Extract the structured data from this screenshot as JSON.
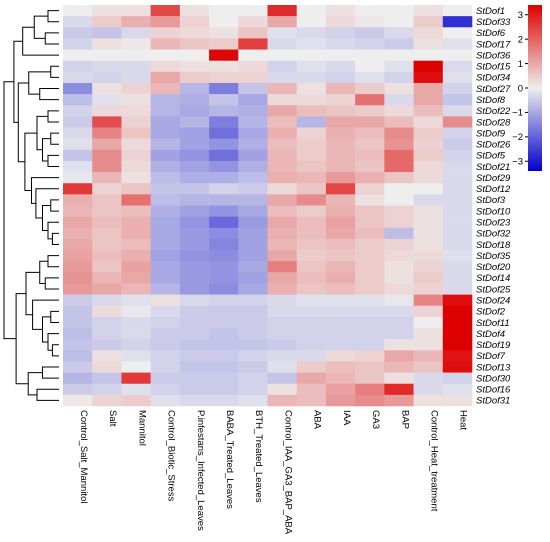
{
  "chart_data": {
    "type": "heatmap",
    "title": "",
    "xlabel": "",
    "ylabel": "",
    "columns": [
      "Control_Salt_Mannitol",
      "Salt",
      "Mannitol",
      "Control_Biotic_Stress",
      "P.infestans_Infected_Leaves",
      "BABA_Treated_Leaves",
      "BTH_Treated_Leaves",
      "Control_IAA_GA3_BAP_ABA",
      "ABA",
      "IAA",
      "GA3",
      "BAP",
      "Control_Heat_treatment",
      "Heat"
    ],
    "rows": [
      "StDof1",
      "StDof33",
      "StDof6",
      "StDof17",
      "StDof36",
      "StDof15",
      "StDof34",
      "StDof27",
      "StDof8",
      "StDof22",
      "StDof28",
      "StDof9",
      "StDof26",
      "StDof5",
      "StDof21",
      "StDof29",
      "StDof12",
      "StDof3",
      "StDof10",
      "StDof23",
      "StDof32",
      "StDof18",
      "StDof35",
      "StDof20",
      "StDof14",
      "StDof25",
      "StDof24",
      "StDof2",
      "StDof11",
      "StDof4",
      "StDof19",
      "StDof7",
      "StDof13",
      "StDof30",
      "StDof16",
      "StDof31"
    ],
    "values": [
      [
        0.0,
        0.2,
        0.2,
        2.4,
        0.2,
        0.0,
        0.0,
        2.8,
        0.0,
        0.2,
        0.0,
        0.0,
        0.2,
        0.0
      ],
      [
        -0.3,
        0.5,
        0.9,
        1.2,
        0.4,
        0.0,
        0.3,
        1.0,
        0.0,
        0.3,
        0.1,
        0.0,
        0.5,
        -2.7
      ],
      [
        -0.5,
        -0.6,
        -0.3,
        0.4,
        0.3,
        0.2,
        0.6,
        -0.2,
        -0.3,
        -0.4,
        -0.5,
        -0.3,
        0.3,
        0.0
      ],
      [
        -0.4,
        0.2,
        0.1,
        0.8,
        0.6,
        0.5,
        2.5,
        -0.3,
        -0.2,
        -0.3,
        -0.4,
        -0.5,
        0.2,
        -0.2
      ],
      [
        0.0,
        0.0,
        0.0,
        0.0,
        0.0,
        3.3,
        0.0,
        0.0,
        0.0,
        0.0,
        0.0,
        0.0,
        0.0,
        0.0
      ],
      [
        -0.4,
        -0.3,
        -0.3,
        0.3,
        0.2,
        0.2,
        0.3,
        -0.4,
        -0.2,
        -0.3,
        0.0,
        -0.2,
        3.4,
        -0.3
      ],
      [
        -0.3,
        -0.4,
        -0.3,
        1.0,
        0.5,
        0.4,
        0.4,
        -0.3,
        -0.3,
        -0.4,
        -0.2,
        -0.4,
        3.2,
        -0.2
      ],
      [
        -1.4,
        0.2,
        0.4,
        0.8,
        -0.8,
        -1.6,
        -0.6,
        0.8,
        0.2,
        0.8,
        0.5,
        0.2,
        1.0,
        -0.4
      ],
      [
        -0.7,
        -0.2,
        0.2,
        -0.8,
        -0.9,
        -0.6,
        -1.0,
        0.3,
        0.3,
        0.4,
        1.8,
        -0.3,
        1.0,
        -0.6
      ],
      [
        -0.4,
        0.3,
        0.3,
        -0.8,
        -1.0,
        -0.8,
        -0.9,
        1.0,
        0.7,
        0.6,
        0.5,
        0.3,
        0.7,
        -0.3
      ],
      [
        -0.5,
        2.3,
        0.4,
        -1.0,
        -0.8,
        -1.6,
        -0.8,
        0.7,
        -0.8,
        1.0,
        1.0,
        0.7,
        0.3,
        1.4
      ],
      [
        -0.3,
        1.5,
        0.6,
        -1.0,
        -1.1,
        -1.8,
        -1.0,
        0.9,
        0.4,
        0.9,
        0.7,
        1.4,
        0.5,
        -0.4
      ],
      [
        -0.2,
        1.0,
        0.3,
        -0.8,
        -1.1,
        -1.3,
        -0.9,
        0.7,
        0.5,
        0.8,
        0.6,
        1.3,
        0.4,
        -0.5
      ],
      [
        -0.6,
        1.4,
        0.4,
        -1.1,
        -1.3,
        -1.8,
        -1.1,
        0.8,
        0.5,
        0.8,
        0.7,
        1.9,
        0.5,
        -0.4
      ],
      [
        -0.2,
        1.4,
        0.3,
        -0.9,
        -1.1,
        -1.3,
        -0.9,
        0.8,
        0.6,
        0.8,
        0.6,
        1.9,
        0.3,
        -0.3
      ],
      [
        -0.1,
        0.8,
        0.2,
        -0.7,
        -0.9,
        -0.9,
        -0.7,
        0.9,
        0.8,
        1.2,
        0.9,
        0.6,
        0.3,
        -0.3
      ],
      [
        2.6,
        0.4,
        0.6,
        -0.6,
        -0.6,
        -0.4,
        -0.5,
        0.3,
        0.6,
        2.4,
        0.4,
        0.0,
        0.0,
        -0.3
      ],
      [
        0.9,
        0.6,
        1.8,
        -0.7,
        -0.8,
        -0.8,
        -0.8,
        1.0,
        1.4,
        0.8,
        0.2,
        0.0,
        -0.3,
        -0.3
      ],
      [
        0.8,
        0.6,
        0.7,
        -0.9,
        -1.1,
        -1.3,
        -1.0,
        0.7,
        0.5,
        0.9,
        0.6,
        0.4,
        0.2,
        -0.3
      ],
      [
        1.0,
        0.7,
        0.9,
        -1.0,
        -1.3,
        -1.9,
        -1.2,
        1.0,
        0.7,
        1.1,
        0.6,
        0.4,
        0.2,
        -0.3
      ],
      [
        0.9,
        0.6,
        0.9,
        -1.0,
        -1.2,
        -1.4,
        -1.1,
        0.9,
        0.7,
        1.0,
        0.7,
        -0.7,
        0.2,
        -0.3
      ],
      [
        1.0,
        0.6,
        0.7,
        -1.0,
        -1.2,
        -1.5,
        -1.1,
        0.8,
        0.6,
        0.7,
        0.5,
        0.4,
        0.2,
        -0.3
      ],
      [
        1.1,
        0.7,
        0.9,
        -1.1,
        -1.3,
        -1.4,
        -1.1,
        1.0,
        0.5,
        0.6,
        0.5,
        0.3,
        0.3,
        -0.2
      ],
      [
        1.2,
        0.6,
        1.1,
        -1.0,
        -1.2,
        -1.3,
        -1.0,
        1.6,
        0.6,
        0.8,
        0.5,
        0.2,
        0.4,
        -0.3
      ],
      [
        1.3,
        0.8,
        1.0,
        -1.0,
        -1.2,
        -1.3,
        -1.1,
        1.0,
        0.7,
        0.9,
        0.5,
        0.2,
        0.5,
        -0.3
      ],
      [
        1.2,
        1.0,
        0.8,
        -0.8,
        -1.2,
        -1.4,
        -1.0,
        0.9,
        0.6,
        0.7,
        0.5,
        0.3,
        0.4,
        -0.3
      ],
      [
        -0.5,
        -0.3,
        -0.2,
        0.2,
        -0.3,
        -0.4,
        -0.4,
        -0.3,
        -0.2,
        -0.2,
        -0.2,
        -0.1,
        1.5,
        3.2
      ],
      [
        -0.6,
        0.3,
        -0.1,
        -0.3,
        -0.5,
        -0.5,
        -0.5,
        -0.3,
        -0.3,
        -0.3,
        -0.3,
        -0.3,
        0.4,
        3.5
      ],
      [
        -0.6,
        -0.4,
        -0.3,
        -0.4,
        -0.5,
        -0.5,
        -0.5,
        -0.4,
        -0.4,
        -0.4,
        -0.4,
        -0.4,
        0.0,
        3.6
      ],
      [
        -0.7,
        -0.4,
        -0.3,
        -0.5,
        -0.5,
        -0.6,
        -0.5,
        -0.4,
        -0.4,
        -0.4,
        -0.4,
        -0.4,
        0.2,
        3.6
      ],
      [
        -0.6,
        -0.5,
        -0.4,
        -0.5,
        -0.6,
        -0.6,
        -0.6,
        -0.5,
        -0.4,
        -0.4,
        -0.4,
        0.2,
        0.2,
        3.5
      ],
      [
        -0.7,
        0.2,
        -0.2,
        -0.4,
        -0.5,
        -0.5,
        -0.4,
        -0.3,
        -0.3,
        0.3,
        0.4,
        1.0,
        0.8,
        3.1
      ],
      [
        -0.5,
        0.3,
        0.0,
        -0.4,
        -0.6,
        -0.6,
        -0.5,
        -0.2,
        0.5,
        0.7,
        0.6,
        0.8,
        0.6,
        3.2
      ],
      [
        -0.8,
        -0.6,
        2.6,
        -0.5,
        -0.5,
        -0.5,
        -0.4,
        -0.6,
        1.0,
        0.8,
        0.6,
        0.2,
        -0.3,
        -0.4
      ],
      [
        -0.5,
        -0.4,
        -0.2,
        -0.4,
        -0.5,
        -0.5,
        -0.4,
        0.2,
        0.7,
        1.1,
        1.6,
        2.8,
        -0.3,
        -0.2
      ],
      [
        0.1,
        0.4,
        0.5,
        -0.2,
        -0.3,
        -0.3,
        -0.2,
        0.8,
        0.7,
        1.2,
        1.4,
        1.2,
        0.2,
        0.2
      ]
    ],
    "color_scale": {
      "min": -3.4,
      "max": 3.4,
      "low_color": "#0000cc",
      "mid_color": "#eeeeee",
      "high_color": "#dd0000",
      "ticks": [
        3,
        2,
        1,
        0,
        -1,
        -2,
        -3
      ],
      "tick_labels": [
        "3",
        "2",
        "1",
        "0",
        "−1",
        "−2",
        "−3"
      ]
    },
    "row_dendrogram": true,
    "legend_placement": "right"
  }
}
